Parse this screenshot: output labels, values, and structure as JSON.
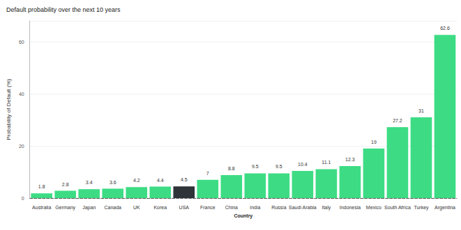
{
  "chart_data": {
    "type": "bar",
    "title": "Default probability over the next 10 years",
    "x_label": "Country",
    "y_label": "Probability of Default (%)",
    "categories": [
      "Australia",
      "Germany",
      "Japan",
      "Canada",
      "UK",
      "Korea",
      "USA",
      "France",
      "China",
      "India",
      "Russia",
      "Saudi Arabia",
      "Italy",
      "Indonesia",
      "Mexico",
      "South Africa",
      "Turkey",
      "Argentina"
    ],
    "values": [
      1.8,
      2.8,
      3.4,
      3.6,
      4.2,
      4.4,
      4.5,
      7,
      8.8,
      9.5,
      9.5,
      10.4,
      11.1,
      12.3,
      19,
      27.2,
      31,
      62.6
    ],
    "colors": [
      "#3ddc84",
      "#3ddc84",
      "#3ddc84",
      "#3ddc84",
      "#3ddc84",
      "#3ddc84",
      "#2f3438",
      "#3ddc84",
      "#3ddc84",
      "#3ddc84",
      "#3ddc84",
      "#3ddc84",
      "#3ddc84",
      "#3ddc84",
      "#3ddc84",
      "#3ddc84",
      "#3ddc84",
      "#3ddc84"
    ],
    "ylim": [
      0,
      68
    ],
    "yticks": [
      0,
      20,
      40,
      60
    ],
    "grid": true,
    "data_labels": true
  }
}
